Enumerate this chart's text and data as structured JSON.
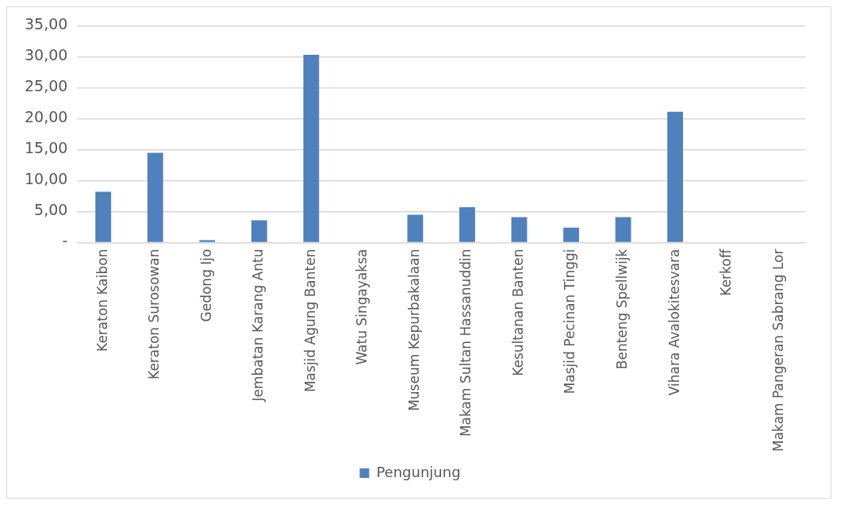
{
  "chart_data": {
    "type": "bar",
    "categories": [
      "Keraton Kaibon",
      "Keraton Surosowan",
      "Gedong Ijo",
      "Jembatan Karang Antu",
      "Masjid Agung Banten",
      "Watu Singayaksa",
      "Museum Kepurbakalaan",
      "Makam Sultan Hassanuddin",
      "Kesultanan Banten",
      "Masjid Pecinan Tinggi",
      "Benteng Spellwijk",
      "Vihara Avalokitesvara",
      "Kerkoff",
      "Makam Pangeran Sabrang Lor"
    ],
    "series": [
      {
        "name": "Pengunjung",
        "color": "#4f81bd",
        "values": [
          8.2,
          14.5,
          0.4,
          3.6,
          30.3,
          0,
          4.5,
          5.7,
          4.1,
          2.4,
          4.1,
          21.1,
          0,
          0
        ]
      }
    ],
    "ylim": [
      0,
      35
    ],
    "yticks": [
      {
        "value": 0,
        "label": "-"
      },
      {
        "value": 5,
        "label": "5,00"
      },
      {
        "value": 10,
        "label": "10,00"
      },
      {
        "value": 15,
        "label": "15,00"
      },
      {
        "value": 20,
        "label": "20,00"
      },
      {
        "value": 25,
        "label": "25,00"
      },
      {
        "value": 30,
        "label": "30,00"
      },
      {
        "value": 35,
        "label": "35,00"
      }
    ],
    "grid": "y",
    "legend": "bottom"
  }
}
